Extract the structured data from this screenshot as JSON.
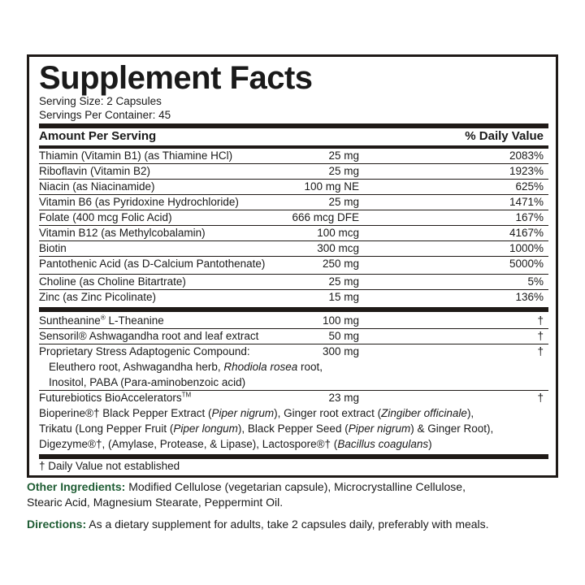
{
  "title": "Supplement Facts",
  "serving_size": "Serving Size: 2 Capsules",
  "servings_per_container": "Servings Per Container: 45",
  "header": {
    "amount": "Amount Per Serving",
    "dv": "% Daily Value"
  },
  "vitamins": [
    {
      "name": "Thiamin (Vitamin B1) (as Thiamine HCl)",
      "amount": "25 mg",
      "dv": "2083%"
    },
    {
      "name": "Riboflavin (Vitamin B2)",
      "amount": "25 mg",
      "dv": "1923%"
    },
    {
      "name": "Niacin (as Niacinamide)",
      "amount": "100 mg NE",
      "dv": "625%"
    },
    {
      "name": "Vitamin B6 (as Pyridoxine Hydrochloride)",
      "amount": "25 mg",
      "dv": "1471%"
    },
    {
      "name": "Folate (400 mcg Folic Acid)",
      "amount": "666 mcg DFE",
      "dv": "167%"
    },
    {
      "name": "Vitamin B12 (as Methylcobalamin)",
      "amount": "100 mcg",
      "dv": "4167%"
    },
    {
      "name": "Biotin",
      "amount": "300 mcg",
      "dv": "1000%"
    },
    {
      "name": "Pantothenic Acid (as D-Calcium Pantothenate)",
      "amount": "250 mg",
      "dv": "5000%"
    },
    {
      "name": "Choline (as Choline Bitartrate)",
      "amount": "25 mg",
      "dv": "5%"
    },
    {
      "name": "Zinc (as Zinc Picolinate)",
      "amount": "15 mg",
      "dv": "136%"
    }
  ],
  "others": [
    {
      "name": "Suntheanine",
      "reg": "®",
      "name2": " L-Theanine",
      "amount": "100 mg",
      "dv": "†"
    },
    {
      "name": "Sensoril® Ashwagandha root and leaf extract",
      "amount": "50 mg",
      "dv": "†"
    },
    {
      "name": "Proprietary Stress Adaptogenic Compound:",
      "amount": "300 mg",
      "dv": "†",
      "sub1a": "Eleuthero root, Ashwagandha herb, ",
      "sub1b": "Rhodiola rosea",
      "sub1c": " root,",
      "sub2": "Inositol, PABA (Para-aminobenzoic acid)"
    },
    {
      "name": "Futurebiotics BioAccelerators",
      "tm": "TM",
      "amount": "23 mg",
      "dv": "†",
      "l1": [
        "Bioperine®† Black Pepper Extract (",
        "Piper nigrum",
        "), Ginger root extract (",
        "Zingiber officinale",
        "),"
      ],
      "l2": [
        "Trikatu (Long Pepper Fruit (",
        "Piper longum",
        "), Black Pepper Seed (",
        "Piper nigrum",
        ") & Ginger Root),"
      ],
      "l3": [
        "Digezyme®†, (Amylase, Protease, & Lipase), Lactospore®† (",
        "Bacillus coagulans",
        ")"
      ]
    }
  ],
  "footnote": "† Daily Value not established",
  "other_ingredients": {
    "label": "Other Ingredients:",
    "text": " Modified Cellulose (vegetarian capsule), Microcrystalline Cellulose,",
    "text2": "Stearic Acid, Magnesium Stearate, Peppermint Oil."
  },
  "directions": {
    "label": "Directions:",
    "text": " As a dietary supplement for adults, take 2 capsules daily, preferably with meals."
  },
  "colors": {
    "border": "#1f1a17",
    "label_green": "#1e5c33"
  }
}
